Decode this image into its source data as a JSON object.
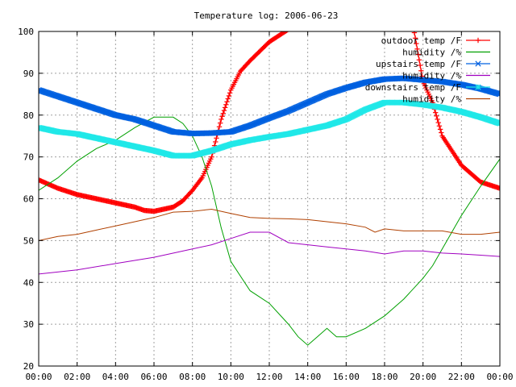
{
  "chart_data": {
    "type": "line",
    "title": "Temperature log: 2006-06-23",
    "xlabel": "",
    "ylabel": "",
    "xlim": [
      0,
      24
    ],
    "ylim": [
      20,
      100
    ],
    "grid": true,
    "legend_position": "top-right",
    "x_ticks": [
      0,
      2,
      4,
      6,
      8,
      10,
      12,
      14,
      16,
      18,
      20,
      22,
      24
    ],
    "x_tick_labels": [
      "00:00",
      "02:00",
      "04:00",
      "06:00",
      "08:00",
      "10:00",
      "12:00",
      "14:00",
      "16:00",
      "18:00",
      "20:00",
      "22:00",
      "00:00"
    ],
    "y_ticks": [
      20,
      30,
      40,
      50,
      60,
      70,
      80,
      90,
      100
    ],
    "y_tick_labels": [
      "20",
      "30",
      "40",
      "50",
      "60",
      "70",
      "80",
      "90",
      "100"
    ],
    "series": [
      {
        "name": "outdoor temp /F",
        "color": "#ff0000",
        "marker": "plus",
        "x": [
          0,
          1,
          2,
          3,
          4,
          5,
          5.5,
          6,
          7,
          7.5,
          8,
          8.5,
          9,
          9.5,
          10,
          10.5,
          11,
          12,
          13,
          13.2,
          19.5,
          20,
          20.5,
          21,
          22,
          23,
          24
        ],
        "y": [
          64.5,
          62.5,
          61,
          60,
          59,
          58,
          57.2,
          57,
          58,
          59.5,
          62,
          65,
          70,
          79,
          86,
          90.5,
          93,
          97.5,
          100.5,
          102,
          101,
          88,
          83,
          75,
          68,
          64,
          62.5
        ]
      },
      {
        "name": "humidity /%",
        "color": "#00a000",
        "marker": "none",
        "x": [
          0,
          1,
          2,
          3,
          4,
          5,
          6,
          7,
          7.5,
          8,
          8.5,
          9,
          9.5,
          10,
          11,
          12,
          13,
          13.5,
          14,
          14.5,
          15,
          15.5,
          16,
          17,
          18,
          19,
          20,
          20.5,
          21,
          22,
          23,
          24
        ],
        "y": [
          62,
          65,
          69,
          72,
          74,
          77,
          79.5,
          79.5,
          78,
          75,
          70,
          63,
          53,
          45,
          38,
          35,
          30,
          27,
          25,
          27,
          29,
          27,
          27,
          29,
          32,
          36,
          41,
          44,
          48,
          56,
          63,
          69.5
        ]
      },
      {
        "name": "upstairs temp /F",
        "color": "#0060e0",
        "marker": "x",
        "x": [
          0,
          1,
          2,
          3,
          4,
          5,
          6,
          7,
          8,
          9,
          10,
          11,
          12,
          13,
          14,
          15,
          16,
          17,
          18,
          19,
          20,
          21,
          22,
          23,
          24
        ],
        "y": [
          86,
          84.5,
          83,
          81.5,
          80,
          79,
          77.5,
          76,
          75.6,
          75.7,
          76,
          77.5,
          79.3,
          81,
          83,
          85,
          86.5,
          87.8,
          88.6,
          88.8,
          88.4,
          88,
          87.3,
          86.3,
          85
        ]
      },
      {
        "name": "humidity /%",
        "color": "#a000c0",
        "marker": "none",
        "x": [
          0,
          2,
          4,
          6,
          8,
          9,
          10,
          11,
          12,
          13,
          14,
          15,
          16,
          17,
          18,
          19,
          20,
          21,
          22,
          23,
          24
        ],
        "y": [
          42,
          43,
          44.5,
          46,
          48,
          49,
          50.5,
          52,
          52,
          49.5,
          49,
          48.5,
          48,
          47.5,
          46.8,
          47.5,
          47.5,
          47,
          46.8,
          46.5,
          46.2
        ]
      },
      {
        "name": "downstairs temp /F",
        "color": "#20e8e8",
        "marker": "star",
        "x": [
          0,
          1,
          2,
          3,
          4,
          5,
          6,
          7,
          8,
          9,
          10,
          11,
          12,
          13,
          14,
          15,
          16,
          17,
          18,
          19,
          20,
          21,
          22,
          23,
          24
        ],
        "y": [
          77,
          76,
          75.5,
          74.5,
          73.5,
          72.5,
          71.5,
          70.3,
          70.3,
          71.5,
          73,
          74,
          74.8,
          75.5,
          76.5,
          77.5,
          79,
          81.3,
          83,
          83,
          82.5,
          81.8,
          80.8,
          79.5,
          78
        ]
      },
      {
        "name": "humidity /%",
        "color": "#b04000",
        "marker": "none",
        "x": [
          0,
          1,
          2,
          3,
          4,
          5,
          6,
          7,
          8,
          9,
          10,
          11,
          12,
          13,
          14,
          15,
          16,
          17,
          17.5,
          18,
          19,
          20,
          21,
          22,
          23,
          24
        ],
        "y": [
          50,
          51,
          51.5,
          52.5,
          53.5,
          54.5,
          55.5,
          56.8,
          57,
          57.5,
          56.5,
          55.5,
          55.3,
          55.2,
          55,
          54.5,
          54,
          53.2,
          52,
          52.8,
          52.3,
          52.3,
          52.3,
          51.5,
          51.5,
          52
        ]
      }
    ]
  }
}
